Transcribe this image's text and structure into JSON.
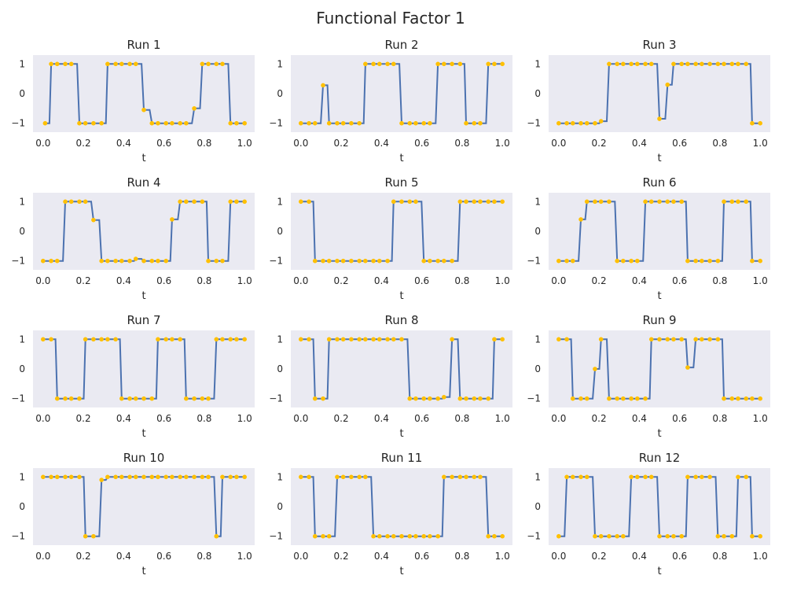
{
  "chart_data": {
    "type": "line",
    "title": "Functional Factor 1",
    "xlabel": "t",
    "xlim": [
      -0.05,
      1.05
    ],
    "ylim": [
      -1.3,
      1.3
    ],
    "x_ticks": [
      0.0,
      0.2,
      0.4,
      0.6,
      0.8,
      1.0
    ],
    "x_tick_labels": [
      "0.0",
      "0.2",
      "0.4",
      "0.6",
      "0.8",
      "1.0"
    ],
    "y_ticks": [
      -1,
      0,
      1
    ],
    "y_tick_labels": [
      "−1",
      "0",
      "1"
    ],
    "grid": false,
    "line_style": "step",
    "colors": {
      "line": "#4c72b0",
      "points": "#ffc000",
      "plot_background": "#eaeaf2"
    },
    "panels": [
      {
        "title": "Run 1",
        "x": [
          0.01,
          0.04,
          0.07,
          0.11,
          0.14,
          0.18,
          0.21,
          0.25,
          0.29,
          0.32,
          0.36,
          0.39,
          0.43,
          0.46,
          0.5,
          0.54,
          0.57,
          0.61,
          0.64,
          0.68,
          0.71,
          0.75,
          0.79,
          0.82,
          0.86,
          0.89,
          0.93,
          0.96,
          1.0
        ],
        "y": [
          -1,
          1,
          1,
          1,
          1,
          -1,
          -1,
          -1,
          -1,
          1,
          1,
          1,
          1,
          1,
          -0.55,
          -1,
          -1,
          -1,
          -1,
          -1,
          -1,
          -0.5,
          1,
          1,
          1,
          1,
          -1,
          -1,
          -1
        ]
      },
      {
        "title": "Run 2",
        "x": [
          0.0,
          0.04,
          0.07,
          0.11,
          0.14,
          0.18,
          0.21,
          0.25,
          0.29,
          0.32,
          0.36,
          0.39,
          0.43,
          0.46,
          0.5,
          0.54,
          0.57,
          0.61,
          0.64,
          0.68,
          0.71,
          0.75,
          0.79,
          0.82,
          0.86,
          0.89,
          0.93,
          0.96,
          1.0
        ],
        "y": [
          -1,
          -1,
          -1,
          0.28,
          -1,
          -1,
          -1,
          -1,
          -1,
          1,
          1,
          1,
          1,
          1,
          -1,
          -1,
          -1,
          -1,
          -1,
          1,
          1,
          1,
          1,
          -1,
          -1,
          -1,
          1,
          1,
          1
        ]
      },
      {
        "title": "Run 3",
        "x": [
          0.0,
          0.04,
          0.07,
          0.11,
          0.14,
          0.18,
          0.21,
          0.25,
          0.29,
          0.32,
          0.36,
          0.39,
          0.43,
          0.46,
          0.5,
          0.54,
          0.57,
          0.61,
          0.64,
          0.68,
          0.71,
          0.75,
          0.79,
          0.82,
          0.86,
          0.89,
          0.93,
          0.96,
          1.0
        ],
        "y": [
          -1,
          -1,
          -1,
          -1,
          -1,
          -1,
          -0.93,
          1,
          1,
          1,
          1,
          1,
          1,
          1,
          -0.85,
          0.3,
          1,
          1,
          1,
          1,
          1,
          1,
          1,
          1,
          1,
          1,
          1,
          -1,
          -1
        ]
      },
      {
        "title": "Run 4",
        "x": [
          0.0,
          0.04,
          0.07,
          0.11,
          0.14,
          0.18,
          0.21,
          0.25,
          0.29,
          0.32,
          0.36,
          0.39,
          0.43,
          0.46,
          0.5,
          0.54,
          0.57,
          0.61,
          0.64,
          0.68,
          0.71,
          0.75,
          0.79,
          0.82,
          0.86,
          0.89,
          0.93,
          0.96,
          1.0
        ],
        "y": [
          -1,
          -1,
          -1,
          1,
          1,
          1,
          1,
          0.38,
          -1,
          -1,
          -1,
          -1,
          -1,
          -0.93,
          -1,
          -1,
          -1,
          -1,
          0.4,
          1,
          1,
          1,
          1,
          -1,
          -1,
          -1,
          1,
          1,
          1
        ]
      },
      {
        "title": "Run 5",
        "x": [
          0.0,
          0.04,
          0.07,
          0.11,
          0.14,
          0.18,
          0.21,
          0.25,
          0.29,
          0.32,
          0.36,
          0.39,
          0.43,
          0.46,
          0.5,
          0.54,
          0.57,
          0.61,
          0.64,
          0.68,
          0.71,
          0.75,
          0.79,
          0.82,
          0.86,
          0.89,
          0.93,
          0.96,
          1.0
        ],
        "y": [
          1,
          1,
          -1,
          -1,
          -1,
          -1,
          -1,
          -1,
          -1,
          -1,
          -1,
          -1,
          -1,
          1,
          1,
          1,
          1,
          -1,
          -1,
          -1,
          -1,
          -1,
          1,
          1,
          1,
          1,
          1,
          1,
          1
        ]
      },
      {
        "title": "Run 6",
        "x": [
          0.0,
          0.04,
          0.07,
          0.11,
          0.14,
          0.18,
          0.21,
          0.25,
          0.29,
          0.32,
          0.36,
          0.39,
          0.43,
          0.46,
          0.5,
          0.54,
          0.57,
          0.61,
          0.64,
          0.68,
          0.71,
          0.75,
          0.79,
          0.82,
          0.86,
          0.89,
          0.93,
          0.96,
          1.0
        ],
        "y": [
          -1,
          -1,
          -1,
          0.4,
          1,
          1,
          1,
          1,
          -1,
          -1,
          -1,
          -1,
          1,
          1,
          1,
          1,
          1,
          1,
          -1,
          -1,
          -1,
          -1,
          -1,
          1,
          1,
          1,
          1,
          -1,
          -1
        ]
      },
      {
        "title": "Run 7",
        "x": [
          0.0,
          0.04,
          0.07,
          0.11,
          0.14,
          0.18,
          0.21,
          0.25,
          0.29,
          0.32,
          0.36,
          0.39,
          0.43,
          0.46,
          0.5,
          0.54,
          0.57,
          0.61,
          0.64,
          0.68,
          0.71,
          0.75,
          0.79,
          0.82,
          0.86,
          0.89,
          0.93,
          0.96,
          1.0
        ],
        "y": [
          1,
          1,
          -1,
          -1,
          -1,
          -1,
          1,
          1,
          1,
          1,
          1,
          -1,
          -1,
          -1,
          -1,
          -1,
          1,
          1,
          1,
          1,
          -1,
          -1,
          -1,
          -1,
          1,
          1,
          1,
          1,
          1
        ]
      },
      {
        "title": "Run 8",
        "x": [
          0.0,
          0.04,
          0.07,
          0.11,
          0.14,
          0.18,
          0.21,
          0.25,
          0.29,
          0.32,
          0.36,
          0.39,
          0.43,
          0.46,
          0.5,
          0.54,
          0.57,
          0.61,
          0.64,
          0.68,
          0.71,
          0.75,
          0.79,
          0.82,
          0.86,
          0.89,
          0.93,
          0.96,
          1.0
        ],
        "y": [
          1,
          1,
          -1,
          -1,
          1,
          1,
          1,
          1,
          1,
          1,
          1,
          1,
          1,
          1,
          1,
          -1,
          -1,
          -1,
          -1,
          -1,
          -0.95,
          1,
          -1,
          -1,
          -1,
          -1,
          -1,
          1,
          1
        ]
      },
      {
        "title": "Run 9",
        "x": [
          0.0,
          0.04,
          0.07,
          0.11,
          0.14,
          0.18,
          0.21,
          0.25,
          0.29,
          0.32,
          0.36,
          0.39,
          0.43,
          0.46,
          0.5,
          0.54,
          0.57,
          0.61,
          0.64,
          0.68,
          0.71,
          0.75,
          0.79,
          0.82,
          0.86,
          0.89,
          0.93,
          0.96,
          1.0
        ],
        "y": [
          1,
          1,
          -1,
          -1,
          -1,
          0,
          1,
          -1,
          -1,
          -1,
          -1,
          -1,
          -1,
          1,
          1,
          1,
          1,
          1,
          0.05,
          1,
          1,
          1,
          1,
          -1,
          -1,
          -1,
          -1,
          -1,
          -1
        ]
      },
      {
        "title": "Run 10",
        "x": [
          0.0,
          0.04,
          0.07,
          0.11,
          0.14,
          0.18,
          0.21,
          0.25,
          0.29,
          0.32,
          0.36,
          0.39,
          0.43,
          0.46,
          0.5,
          0.54,
          0.57,
          0.61,
          0.64,
          0.68,
          0.71,
          0.75,
          0.79,
          0.82,
          0.86,
          0.89,
          0.93,
          0.96,
          1.0
        ],
        "y": [
          1,
          1,
          1,
          1,
          1,
          1,
          -1,
          -1,
          0.9,
          1,
          1,
          1,
          1,
          1,
          1,
          1,
          1,
          1,
          1,
          1,
          1,
          1,
          1,
          1,
          -1,
          1,
          1,
          1,
          1
        ]
      },
      {
        "title": "Run 11",
        "x": [
          0.0,
          0.04,
          0.07,
          0.11,
          0.14,
          0.18,
          0.21,
          0.25,
          0.29,
          0.32,
          0.36,
          0.39,
          0.43,
          0.46,
          0.5,
          0.54,
          0.57,
          0.61,
          0.64,
          0.68,
          0.71,
          0.75,
          0.79,
          0.82,
          0.86,
          0.89,
          0.93,
          0.96,
          1.0
        ],
        "y": [
          1,
          1,
          -1,
          -1,
          -1,
          1,
          1,
          1,
          1,
          1,
          -1,
          -1,
          -1,
          -1,
          -1,
          -1,
          -1,
          -1,
          -1,
          -1,
          1,
          1,
          1,
          1,
          1,
          1,
          -1,
          -1,
          -1
        ]
      },
      {
        "title": "Run 12",
        "x": [
          0.0,
          0.04,
          0.07,
          0.11,
          0.14,
          0.18,
          0.21,
          0.25,
          0.29,
          0.32,
          0.36,
          0.39,
          0.43,
          0.46,
          0.5,
          0.54,
          0.57,
          0.61,
          0.64,
          0.68,
          0.71,
          0.75,
          0.79,
          0.82,
          0.86,
          0.89,
          0.93,
          0.96,
          1.0
        ],
        "y": [
          -1,
          1,
          1,
          1,
          1,
          -1,
          -1,
          -1,
          -1,
          -1,
          1,
          1,
          1,
          1,
          -1,
          -1,
          -1,
          -1,
          1,
          1,
          1,
          1,
          -1,
          -1,
          -1,
          1,
          1,
          -1,
          -1
        ]
      }
    ]
  }
}
